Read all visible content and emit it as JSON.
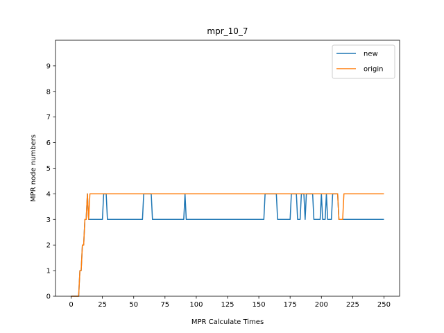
{
  "chart_data": {
    "type": "line",
    "title": "mpr_10_7",
    "xlabel": "MPR Calculate Times",
    "ylabel": "MPR node numbers",
    "xlim": [
      -12.5,
      262.5
    ],
    "ylim": [
      0,
      10
    ],
    "xticks": [
      0,
      25,
      50,
      75,
      100,
      125,
      150,
      175,
      200,
      225,
      250
    ],
    "yticks": [
      0,
      1,
      2,
      3,
      4,
      5,
      6,
      7,
      8,
      9
    ],
    "grid": false,
    "legend_position": "upper right",
    "series": [
      {
        "name": "new",
        "color": "#1f77b4",
        "points": [
          [
            0,
            0
          ],
          [
            6,
            0
          ],
          [
            7,
            1
          ],
          [
            8,
            1
          ],
          [
            9,
            2
          ],
          [
            10,
            2
          ],
          [
            11,
            3
          ],
          [
            12,
            3
          ],
          [
            13,
            4
          ],
          [
            14,
            3
          ],
          [
            15,
            3
          ],
          [
            25,
            3
          ],
          [
            26,
            4
          ],
          [
            28,
            4
          ],
          [
            29,
            3
          ],
          [
            57,
            3
          ],
          [
            58,
            4
          ],
          [
            64,
            4
          ],
          [
            65,
            3
          ],
          [
            90,
            3
          ],
          [
            91,
            4
          ],
          [
            92,
            3
          ],
          [
            154,
            3
          ],
          [
            155,
            4
          ],
          [
            164,
            4
          ],
          [
            165,
            3
          ],
          [
            175,
            3
          ],
          [
            176,
            4
          ],
          [
            180,
            4
          ],
          [
            181,
            3
          ],
          [
            183,
            3
          ],
          [
            184,
            4
          ],
          [
            186,
            4
          ],
          [
            187,
            3
          ],
          [
            188,
            4
          ],
          [
            193,
            4
          ],
          [
            194,
            3
          ],
          [
            199,
            3
          ],
          [
            200,
            4
          ],
          [
            201,
            3
          ],
          [
            203,
            3
          ],
          [
            204,
            4
          ],
          [
            205,
            3
          ],
          [
            208,
            3
          ],
          [
            209,
            4
          ],
          [
            213,
            4
          ],
          [
            214,
            3
          ],
          [
            250,
            3
          ]
        ]
      },
      {
        "name": "origin",
        "color": "#ff7f0e",
        "points": [
          [
            0,
            0
          ],
          [
            6,
            0
          ],
          [
            7,
            1
          ],
          [
            8,
            1
          ],
          [
            9,
            2
          ],
          [
            10,
            2
          ],
          [
            11,
            3
          ],
          [
            12,
            3
          ],
          [
            13,
            4
          ],
          [
            14,
            3
          ],
          [
            15,
            4
          ],
          [
            213,
            4
          ],
          [
            214,
            3
          ],
          [
            217,
            3
          ],
          [
            218,
            4
          ],
          [
            250,
            4
          ]
        ]
      }
    ]
  }
}
